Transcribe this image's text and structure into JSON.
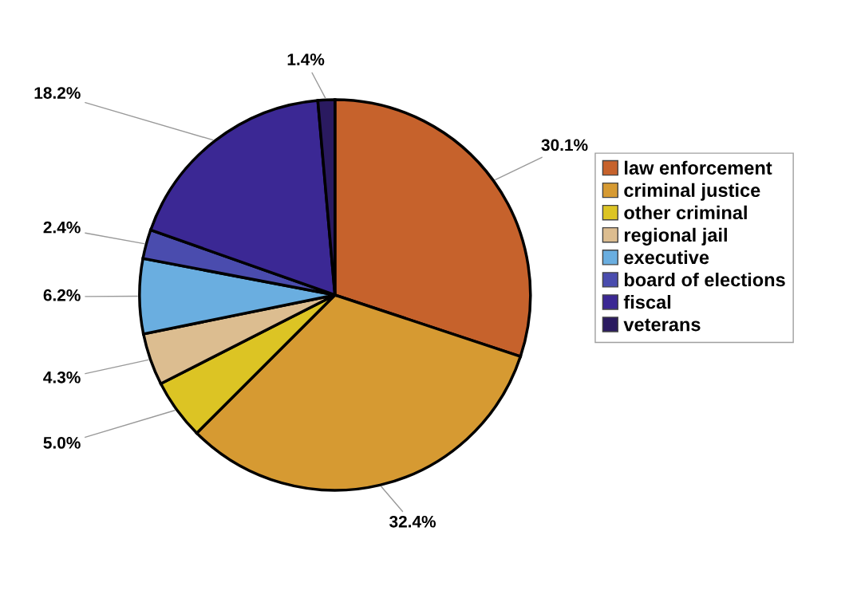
{
  "chart_data": {
    "type": "pie",
    "categories": [
      "law enforcement",
      "criminal justice",
      "other criminal",
      "regional jail",
      "executive",
      "board of elections",
      "fiscal",
      "veterans"
    ],
    "values": [
      30.1,
      32.4,
      5.0,
      4.3,
      6.2,
      2.4,
      18.2,
      1.4
    ],
    "value_labels": [
      "30.1%",
      "32.4%",
      "5.0%",
      "4.3%",
      "6.2%",
      "2.4%",
      "18.2%",
      "1.4%"
    ],
    "colors": [
      "#c6622c",
      "#d69a32",
      "#dcc424",
      "#dcbd90",
      "#6aaee0",
      "#4a4cae",
      "#3b2894",
      "#2a1a60"
    ],
    "legend": "right"
  }
}
